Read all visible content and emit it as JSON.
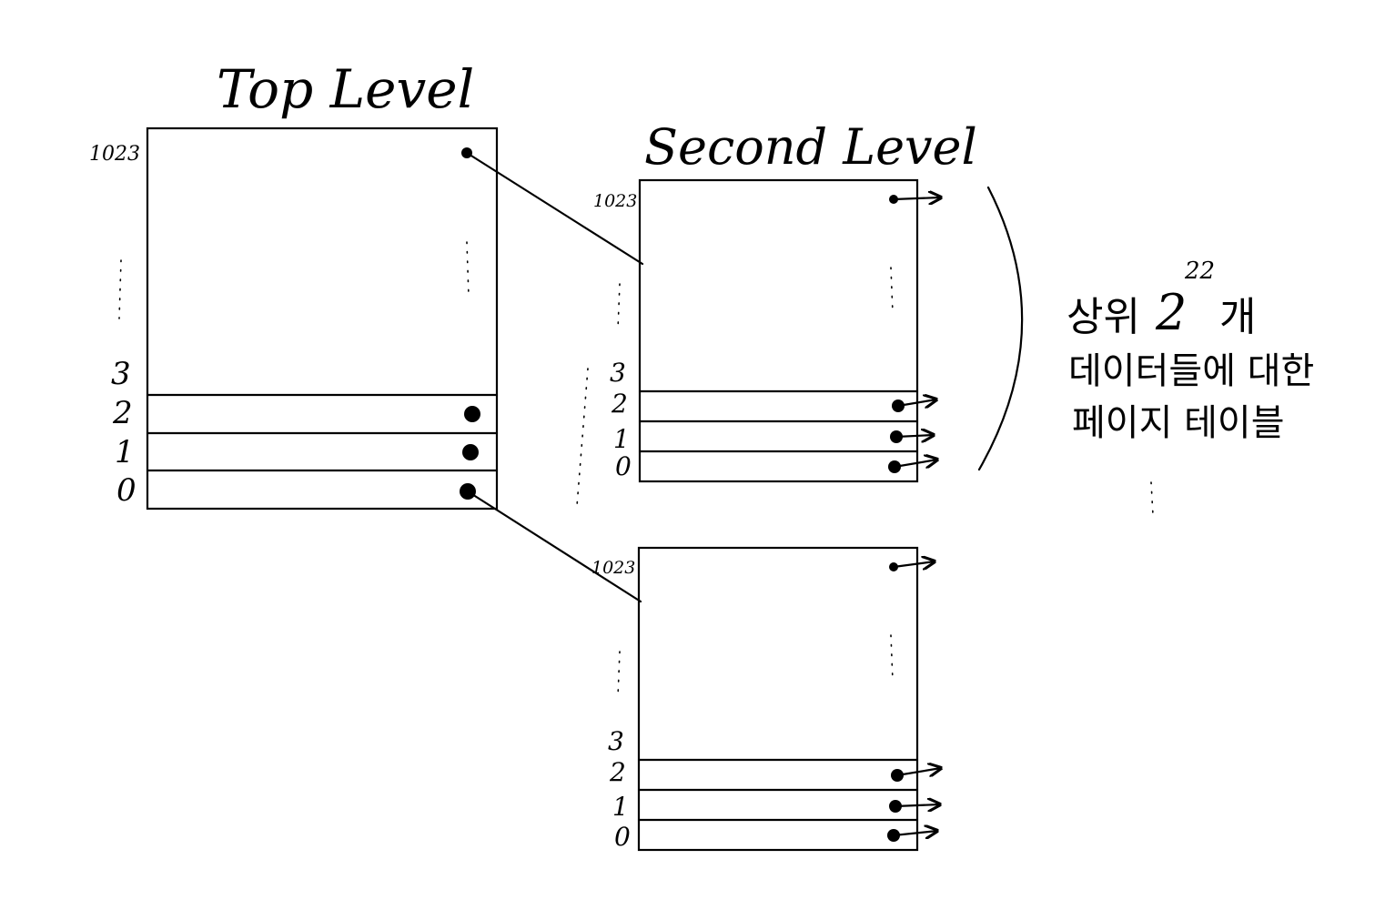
{
  "top_level": {
    "title": "Top Level",
    "labels": {
      "max": "1023",
      "e3": "3",
      "e2": "2",
      "e1": "1",
      "e0": "0"
    }
  },
  "second_level_a": {
    "title": "Second Level",
    "labels": {
      "max": "1023",
      "e3": "3",
      "e2": "2",
      "e1": "1",
      "e0": "0"
    }
  },
  "second_level_b": {
    "labels": {
      "max": "1023",
      "e3": "3",
      "e2": "2",
      "e1": "1",
      "e0": "0"
    }
  },
  "annotation": {
    "line1_prefix": "상위",
    "base": "2",
    "exponent": "22",
    "unit": "개",
    "line2": "데이터들에 대한",
    "line3": "페이지 테이블"
  }
}
